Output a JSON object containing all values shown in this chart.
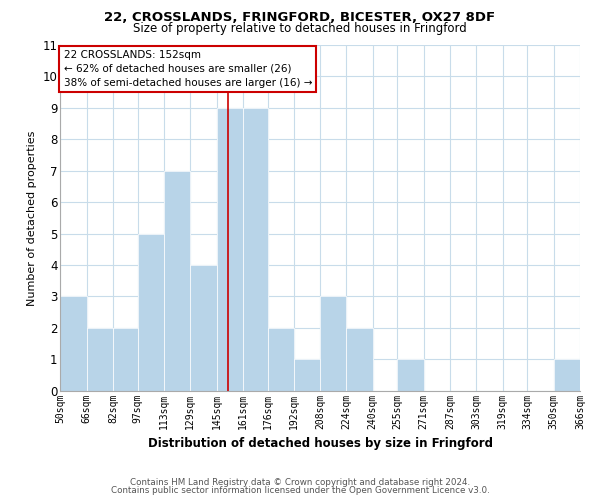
{
  "title1": "22, CROSSLANDS, FRINGFORD, BICESTER, OX27 8DF",
  "title2": "Size of property relative to detached houses in Fringford",
  "xlabel": "Distribution of detached houses by size in Fringford",
  "ylabel": "Number of detached properties",
  "bin_edges": [
    50,
    66,
    82,
    97,
    113,
    129,
    145,
    161,
    176,
    192,
    208,
    224,
    240,
    255,
    271,
    287,
    303,
    319,
    334,
    350,
    366
  ],
  "counts": [
    3,
    2,
    2,
    5,
    7,
    4,
    9,
    9,
    2,
    1,
    3,
    2,
    0,
    1,
    0,
    0,
    0,
    0,
    0,
    1
  ],
  "bar_color": "#b8d4e8",
  "bar_edgecolor": "#ffffff",
  "grid_color": "#c8dcea",
  "vline_x": 152,
  "vline_color": "#cc0000",
  "annotation_title": "22 CROSSLANDS: 152sqm",
  "annotation_line1": "← 62% of detached houses are smaller (26)",
  "annotation_line2": "38% of semi-detached houses are larger (16) →",
  "ylim": [
    0,
    11
  ],
  "yticks": [
    0,
    1,
    2,
    3,
    4,
    5,
    6,
    7,
    8,
    9,
    10,
    11
  ],
  "footer1": "Contains HM Land Registry data © Crown copyright and database right 2024.",
  "footer2": "Contains public sector information licensed under the Open Government Licence v3.0.",
  "tick_labels": [
    "50sqm",
    "66sqm",
    "82sqm",
    "97sqm",
    "113sqm",
    "129sqm",
    "145sqm",
    "161sqm",
    "176sqm",
    "192sqm",
    "208sqm",
    "224sqm",
    "240sqm",
    "255sqm",
    "271sqm",
    "287sqm",
    "303sqm",
    "319sqm",
    "334sqm",
    "350sqm",
    "366sqm"
  ]
}
